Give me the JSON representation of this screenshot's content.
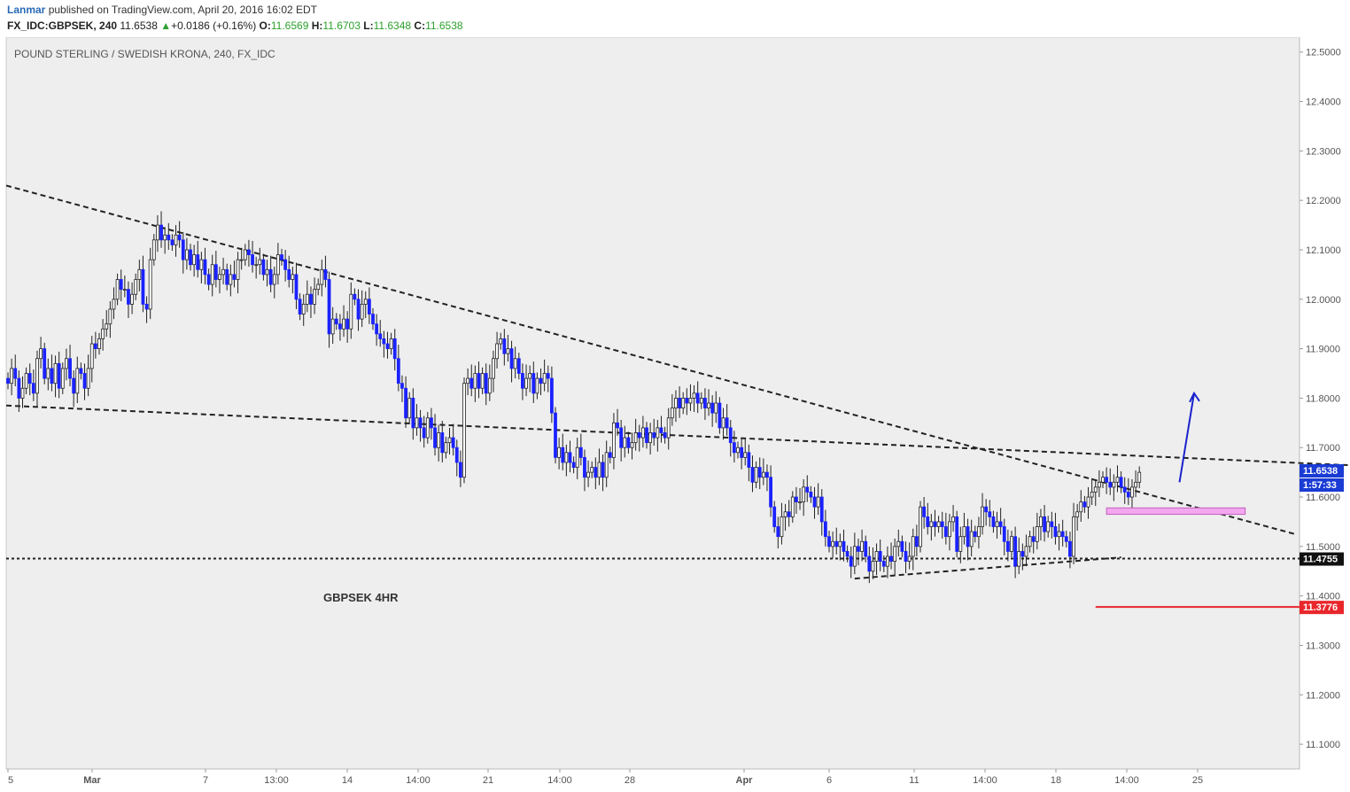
{
  "header": {
    "author": "Lanmar",
    "published": "published on TradingView.com, April 20, 2016 16:02 EDT",
    "symbol": "FX_IDC:GBPSEK, 240",
    "last": "11.6538",
    "change_arrow": "▲",
    "change": "+0.0186 (+0.16%)",
    "o_label": "O:",
    "o_value": "11.6569",
    "h_label": "H:",
    "h_value": "11.6703",
    "l_label": "L:",
    "l_value": "11.6348",
    "c_label": "C:",
    "c_value": "11.6538"
  },
  "chart_data": {
    "type": "candlestick",
    "title": "POUND STERLING / SWEDISH KRONA, 240, FX_IDC",
    "annotation": "GBPSEK 4HR",
    "ylim": [
      11.05,
      12.53
    ],
    "y_ticks": [
      "12.5000",
      "12.4000",
      "12.3000",
      "12.2000",
      "12.1000",
      "12.0000",
      "11.9000",
      "11.8000",
      "11.7000",
      "11.6000",
      "11.5000",
      "11.4000",
      "11.3000",
      "11.2000",
      "11.1000"
    ],
    "x_ticks": [
      "5",
      "Mar",
      "7",
      "13:00",
      "14",
      "14:00",
      "21",
      "14:00",
      "28",
      "Apr",
      "6",
      "11",
      "14:00",
      "18",
      "14:00",
      "25"
    ],
    "price_labels": {
      "last_price": "11.6538",
      "countdown": "1:57:33",
      "support_level": "11.4755",
      "target_level": "11.3776"
    },
    "colors": {
      "up_candle": "#ffffff",
      "down_candle": "#1a22ff",
      "wick": "#222222",
      "grid_bg": "#eeeeee",
      "trendline": "#222222",
      "target_line": "#e8262b",
      "zone": "#f4a6ee",
      "arrow": "#1a22cc",
      "label_blue": "#1a3bd4"
    },
    "trendlines": [
      {
        "name": "upper channel",
        "from": [
          0,
          12.23
        ],
        "to": [
          1462,
          11.525
        ]
      },
      {
        "name": "lower channel",
        "from": [
          0,
          11.785
        ],
        "to": [
          945,
          11.475
        ]
      },
      {
        "name": "rising support",
        "from": [
          232,
          11.435
        ],
        "to": [
          305,
          11.478
        ]
      }
    ],
    "horizontal_levels": [
      {
        "value": 11.4755,
        "style": "dotted"
      },
      {
        "value": 11.3776,
        "style": "solid",
        "from_index": 298
      }
    ],
    "zone": {
      "from_index": 301,
      "to_index": 339,
      "low": 11.565,
      "high": 11.578
    },
    "arrow": {
      "from": [
        321,
        11.63
      ],
      "to": [
        325,
        11.81
      ]
    },
    "candles": {
      "start_index": 0,
      "closes": [
        11.83,
        11.86,
        11.84,
        11.8,
        11.82,
        11.85,
        11.83,
        11.81,
        11.88,
        11.9,
        11.84,
        11.86,
        11.83,
        11.87,
        11.82,
        11.86,
        11.88,
        11.84,
        11.81,
        11.86,
        11.85,
        11.82,
        11.86,
        11.91,
        11.9,
        11.92,
        11.94,
        11.95,
        11.98,
        12.0,
        12.04,
        12.02,
        12.02,
        11.99,
        12.01,
        12.04,
        12.06,
        11.99,
        11.98,
        12.08,
        12.12,
        12.15,
        12.12,
        12.13,
        12.12,
        12.11,
        12.13,
        12.12,
        12.08,
        12.1,
        12.07,
        12.09,
        12.06,
        12.08,
        12.05,
        12.03,
        12.07,
        12.04,
        12.05,
        12.06,
        12.03,
        12.05,
        12.04,
        12.08,
        12.08,
        12.1,
        12.09,
        12.07,
        12.07,
        12.08,
        12.05,
        12.06,
        12.03,
        12.05,
        12.09,
        12.08,
        12.06,
        12.04,
        12.05,
        12.0,
        11.97,
        11.99,
        12.01,
        11.99,
        12.02,
        12.03,
        12.06,
        12.04,
        11.93,
        11.96,
        11.95,
        11.94,
        11.96,
        11.94,
        12.01,
        12.0,
        11.96,
        11.99,
        12.0,
        11.97,
        11.95,
        11.93,
        11.92,
        11.91,
        11.9,
        11.92,
        11.88,
        11.83,
        11.82,
        11.76,
        11.8,
        11.74,
        11.76,
        11.74,
        11.72,
        11.76,
        11.74,
        11.7,
        11.73,
        11.69,
        11.71,
        11.72,
        11.7,
        11.67,
        11.64,
        11.83,
        11.84,
        11.82,
        11.85,
        11.82,
        11.85,
        11.81,
        11.84,
        11.88,
        11.91,
        11.92,
        11.89,
        11.9,
        11.86,
        11.88,
        11.85,
        11.82,
        11.84,
        11.85,
        11.81,
        11.84,
        11.83,
        11.85,
        11.84,
        11.77,
        11.68,
        11.7,
        11.67,
        11.69,
        11.67,
        11.66,
        11.7,
        11.68,
        11.64,
        11.65,
        11.66,
        11.64,
        11.67,
        11.64,
        11.69,
        11.68,
        11.75,
        11.74,
        11.7,
        11.72,
        11.7,
        11.71,
        11.73,
        11.72,
        11.74,
        11.71,
        11.73,
        11.72,
        11.74,
        11.73,
        11.72,
        11.76,
        11.78,
        11.8,
        11.78,
        11.8,
        11.79,
        11.8,
        11.81,
        11.79,
        11.8,
        11.78,
        11.79,
        11.77,
        11.79,
        11.74,
        11.76,
        11.74,
        11.71,
        11.69,
        11.7,
        11.68,
        11.69,
        11.66,
        11.63,
        11.66,
        11.64,
        11.65,
        11.64,
        11.58,
        11.54,
        11.52,
        11.56,
        11.57,
        11.56,
        11.6,
        11.59,
        11.59,
        11.62,
        11.61,
        11.6,
        11.58,
        11.6,
        11.55,
        11.52,
        11.5,
        11.51,
        11.5,
        11.51,
        11.49,
        11.48,
        11.46,
        11.5,
        11.49,
        11.51,
        11.48,
        11.45,
        11.47,
        11.49,
        11.47,
        11.46,
        11.48,
        11.47,
        11.5,
        11.51,
        11.49,
        11.47,
        11.48,
        11.52,
        11.5,
        11.58,
        11.56,
        11.54,
        11.55,
        11.54,
        11.55,
        11.54,
        11.52,
        11.55,
        11.56,
        11.49,
        11.52,
        11.54,
        11.5,
        11.53,
        11.52,
        11.54,
        11.58,
        11.57,
        11.56,
        11.54,
        11.55,
        11.54,
        11.51,
        11.49,
        11.52,
        11.46,
        11.49,
        11.48,
        11.5,
        11.52,
        11.51,
        11.54,
        11.56,
        11.53,
        11.55,
        11.54,
        11.52,
        11.53,
        11.52,
        11.51,
        11.48,
        11.56,
        11.57,
        11.59,
        11.58,
        11.6,
        11.61,
        11.62,
        11.63,
        11.64,
        11.63,
        11.62,
        11.63,
        11.64,
        11.62,
        11.61,
        11.6,
        11.62,
        11.63,
        11.65
      ]
    }
  }
}
